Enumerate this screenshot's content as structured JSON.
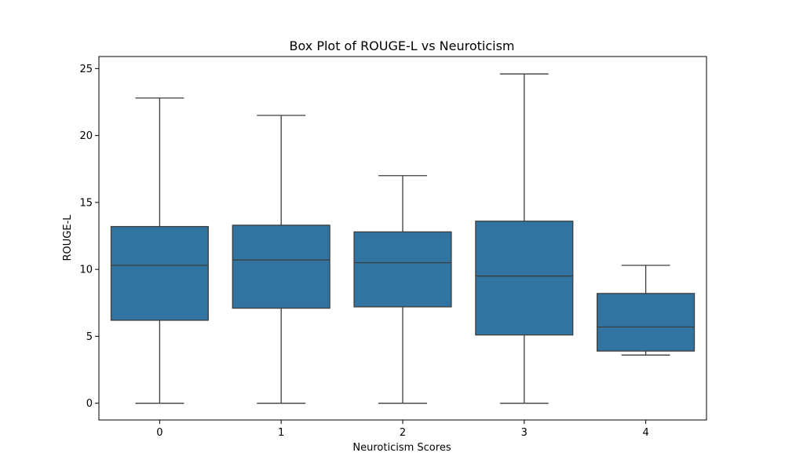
{
  "chart_data": {
    "type": "box",
    "title": "Box Plot of ROUGE-L vs Neuroticism",
    "xlabel": "Neuroticism Scores",
    "ylabel": "ROUGE-L",
    "categories": [
      "0",
      "1",
      "2",
      "3",
      "4"
    ],
    "yticks": [
      0,
      5,
      10,
      15,
      20,
      25
    ],
    "ylim": [
      -1.25,
      25.9
    ],
    "boxes": [
      {
        "category": "0",
        "whisker_low": 0.0,
        "q1": 6.2,
        "median": 10.3,
        "q3": 13.2,
        "whisker_high": 22.8
      },
      {
        "category": "1",
        "whisker_low": 0.0,
        "q1": 7.1,
        "median": 10.7,
        "q3": 13.3,
        "whisker_high": 21.5
      },
      {
        "category": "2",
        "whisker_low": 0.0,
        "q1": 7.2,
        "median": 10.5,
        "q3": 12.8,
        "whisker_high": 17.0
      },
      {
        "category": "3",
        "whisker_low": 0.0,
        "q1": 5.1,
        "median": 9.5,
        "q3": 13.6,
        "whisker_high": 24.6
      },
      {
        "category": "4",
        "whisker_low": 3.6,
        "q1": 3.9,
        "median": 5.7,
        "q3": 8.2,
        "whisker_high": 10.3
      }
    ],
    "colors": {
      "box_fill": "#3274a1",
      "line": "#3d3d3d",
      "frame": "#000000"
    },
    "grid": false,
    "legend": "none"
  }
}
